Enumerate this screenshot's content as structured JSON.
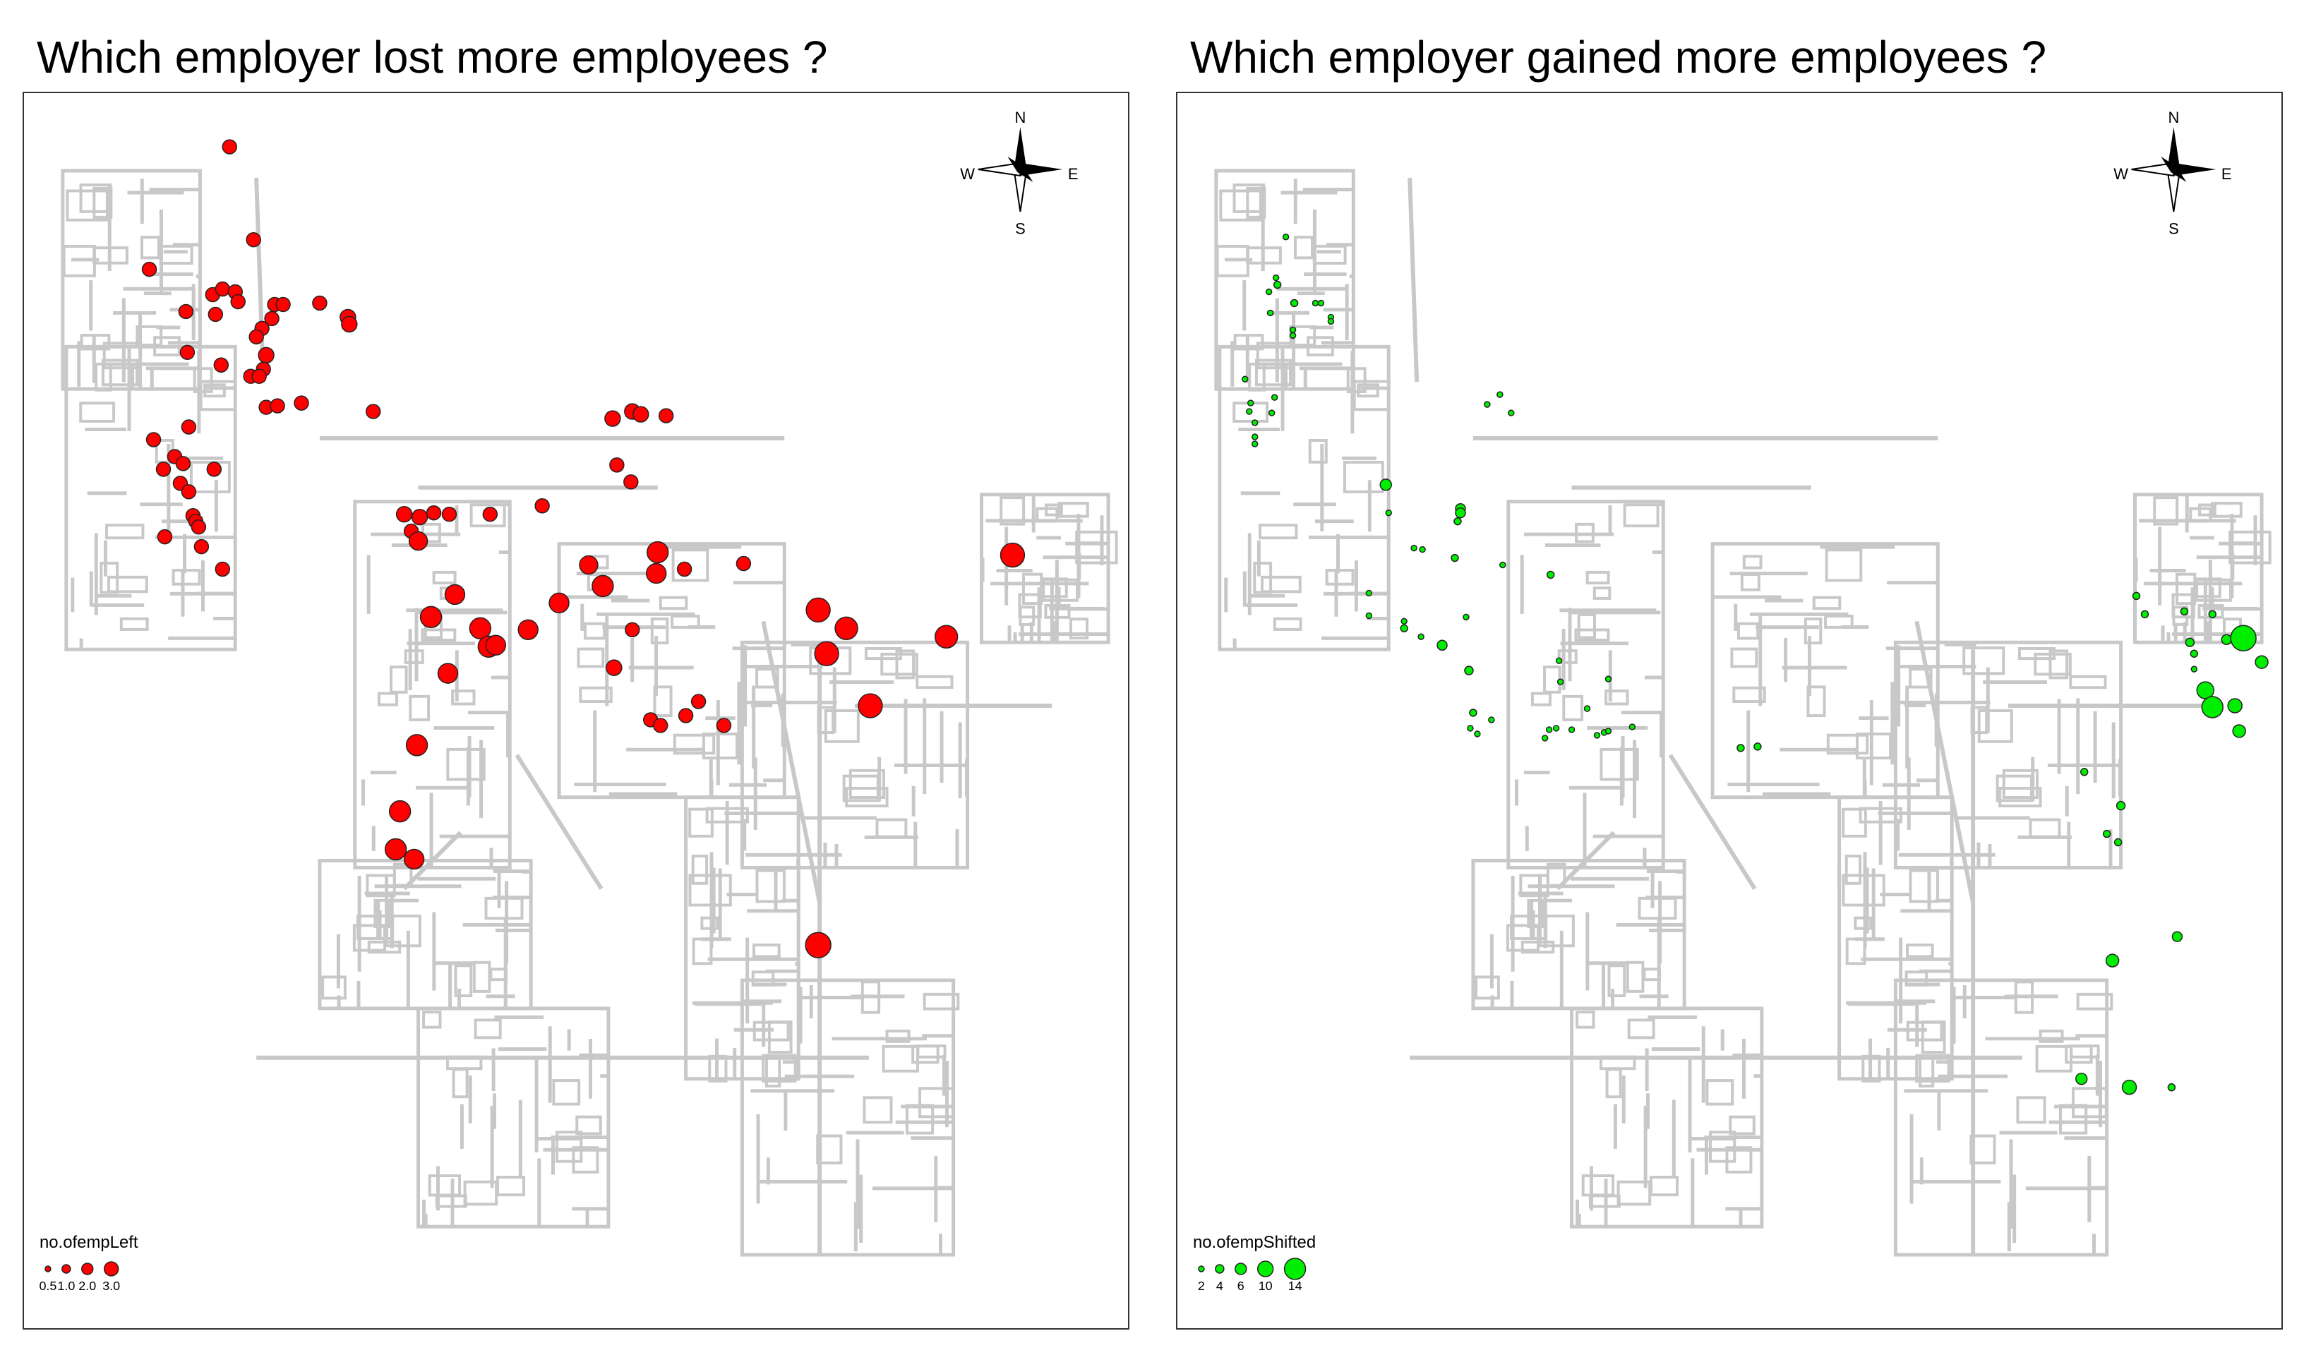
{
  "left": {
    "title": "Which employer lost more employees ?",
    "legend_title": "no.ofempLeft",
    "legend_values": [
      "0.5",
      "1.0",
      "2.0",
      "3.0"
    ],
    "fill": "#ff0000",
    "compass": {
      "n": "N",
      "s": "S",
      "e": "E",
      "w": "W"
    }
  },
  "right": {
    "title": "Which employer gained more employees ?",
    "legend_title": "no.ofempShifted",
    "legend_values": [
      "2",
      "4",
      "6",
      "10",
      "14"
    ],
    "fill": "#00ee00",
    "compass": {
      "n": "N",
      "s": "S",
      "e": "E",
      "w": "W"
    }
  },
  "road_color": "#c8c8c8"
}
